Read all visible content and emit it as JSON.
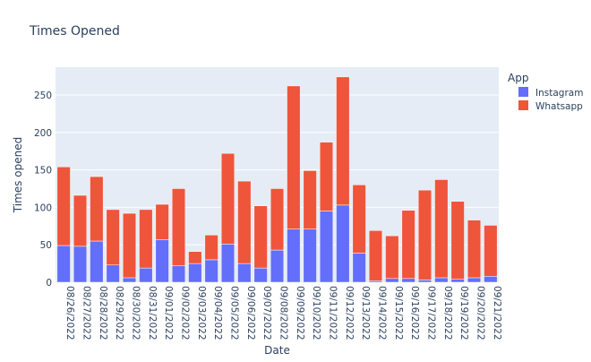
{
  "chart_data": {
    "type": "bar",
    "stacked": true,
    "title": "Times Opened",
    "xlabel": "Date",
    "ylabel": "Times opened",
    "ylim": [
      0,
      287
    ],
    "yticks": [
      0,
      50,
      100,
      150,
      200,
      250
    ],
    "legend_title": "App",
    "legend_position": "top-right",
    "categories": [
      "08/26/2022",
      "08/27/2022",
      "08/28/2022",
      "08/29/2022",
      "08/30/2022",
      "08/31/2022",
      "09/01/2022",
      "09/02/2022",
      "09/03/2022",
      "09/04/2022",
      "09/05/2022",
      "09/06/2022",
      "09/07/2022",
      "09/08/2022",
      "09/09/2022",
      "09/10/2022",
      "09/11/2022",
      "09/12/2022",
      "09/13/2022",
      "09/14/2022",
      "09/15/2022",
      "09/16/2022",
      "09/17/2022",
      "09/18/2022",
      "09/19/2022",
      "09/20/2022",
      "09/21/2022"
    ],
    "series": [
      {
        "name": "Instagram",
        "color": "#636efa",
        "values": [
          49,
          48,
          55,
          23,
          6,
          19,
          57,
          22,
          25,
          30,
          51,
          25,
          19,
          43,
          71,
          71,
          95,
          103,
          39,
          2,
          5,
          5,
          3,
          6,
          4,
          6,
          8
        ]
      },
      {
        "name": "Whatsapp",
        "color": "#ef553b",
        "values": [
          105,
          68,
          86,
          74,
          86,
          78,
          47,
          103,
          16,
          33,
          121,
          110,
          83,
          82,
          191,
          78,
          92,
          171,
          91,
          67,
          57,
          91,
          120,
          131,
          104,
          77,
          68
        ]
      }
    ]
  }
}
